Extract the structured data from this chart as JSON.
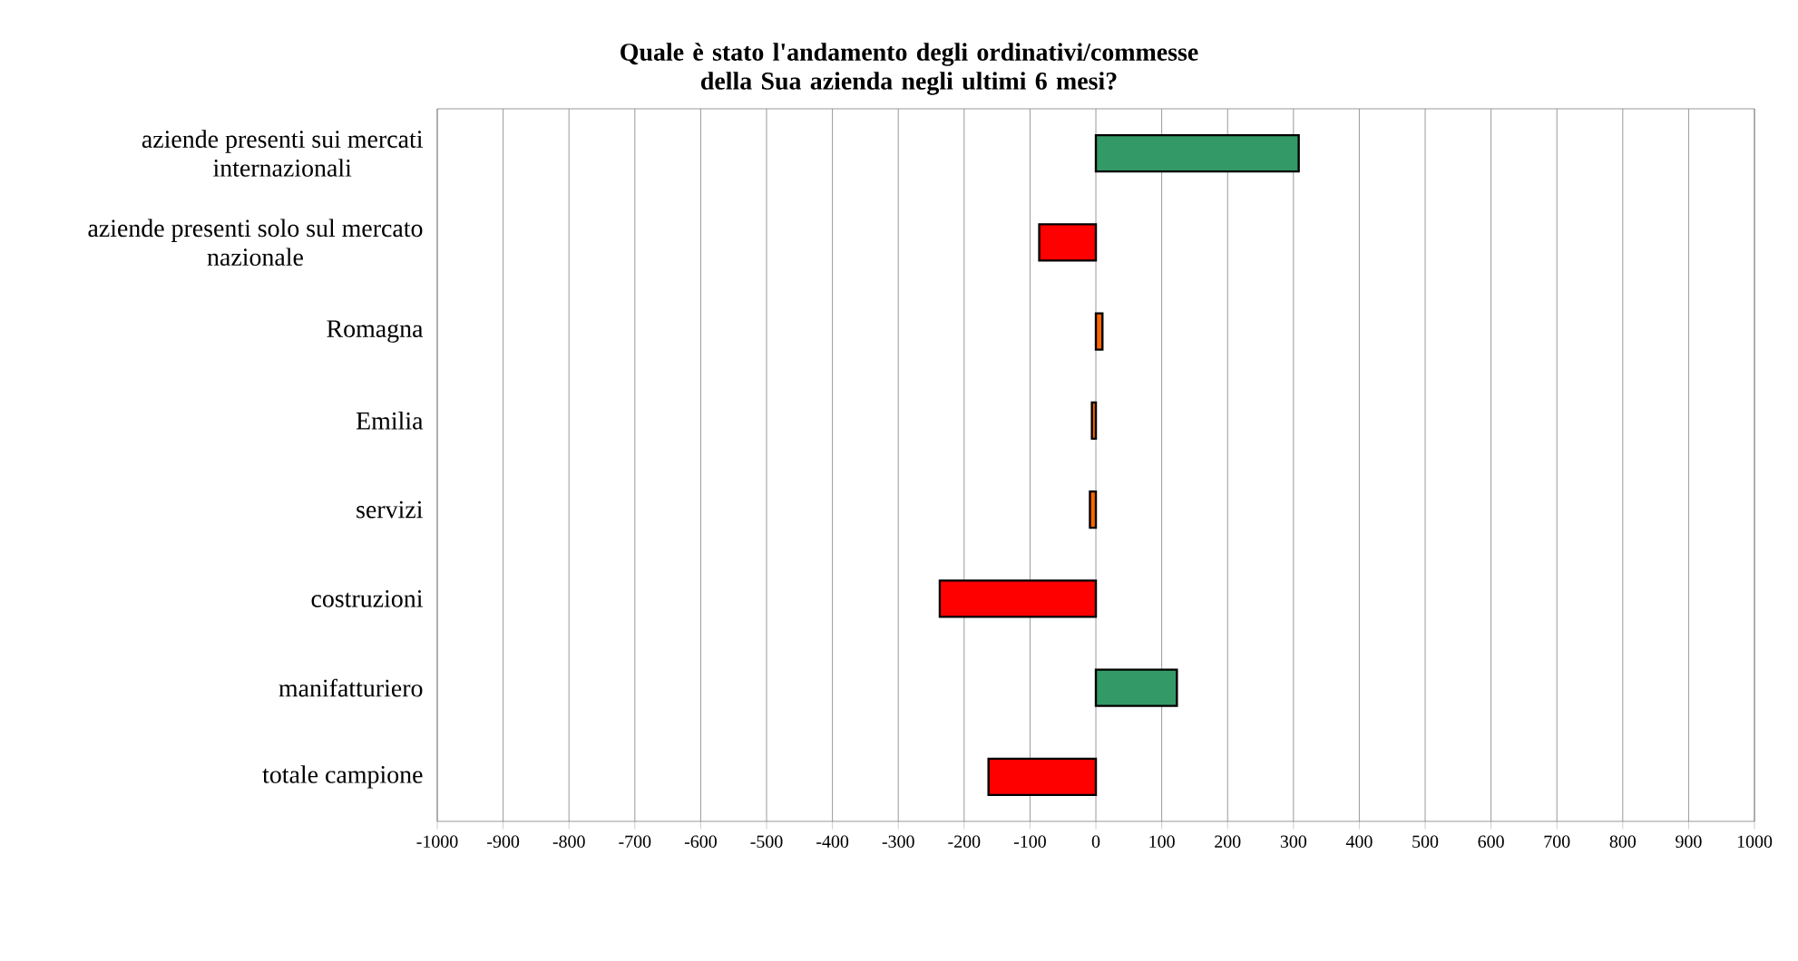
{
  "chart_data": {
    "type": "bar",
    "orientation": "horizontal",
    "title": "Quale è stato l'andamento degli ordinativi/commesse della Sua azienda negli ultimi 6 mesi?",
    "categories": [
      "aziende presenti sui mercati internazionali",
      "aziende presenti solo sul mercato nazionale",
      "Romagna",
      "Emilia",
      "servizi",
      "costruzioni",
      "manifatturiero",
      "totale campione"
    ],
    "values": [
      308,
      -86,
      10,
      -6,
      -9,
      -237,
      123,
      -163
    ],
    "colors": [
      "#339966",
      "#ff0000",
      "#ff6600",
      "#ff6600",
      "#ff6600",
      "#ff0000",
      "#339966",
      "#ff0000"
    ],
    "xlim": [
      -1000,
      1000
    ],
    "xticks": [
      -1000,
      -900,
      -800,
      -700,
      -600,
      -500,
      -400,
      -300,
      -200,
      -100,
      0,
      100,
      200,
      300,
      400,
      500,
      600,
      700,
      800,
      900,
      1000
    ],
    "grid": "x"
  }
}
